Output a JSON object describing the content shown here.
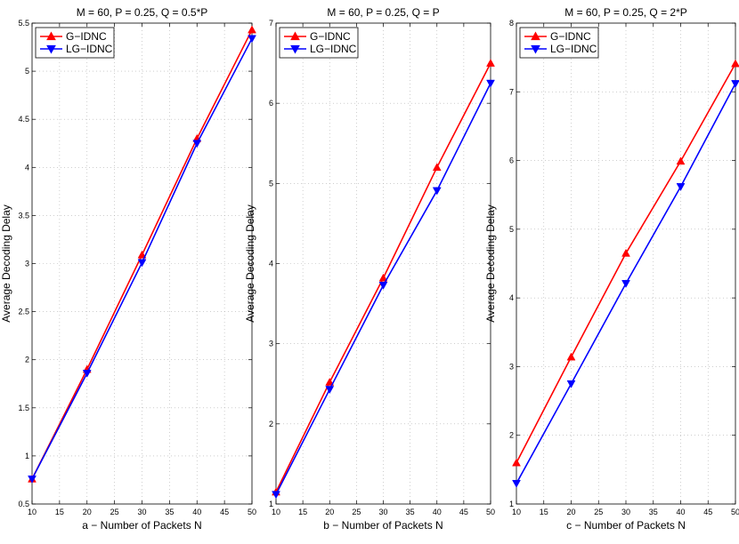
{
  "figure": {
    "background": "#ffffff"
  },
  "chart_data": [
    {
      "type": "line",
      "title": "M = 60, P = 0.25, Q = 0.5*P",
      "xlabel": "a − Number of Packets N",
      "ylabel": "Average Decoding Delay",
      "x": [
        10,
        20,
        30,
        40,
        50
      ],
      "xlim": [
        10,
        50
      ],
      "ylim": [
        0.5,
        5.5
      ],
      "xticks": [
        10,
        15,
        20,
        25,
        30,
        35,
        40,
        45,
        50
      ],
      "yticks": [
        0.5,
        1,
        1.5,
        2,
        2.5,
        3,
        3.5,
        4,
        4.5,
        5,
        5.5
      ],
      "grid": true,
      "legend": "top-left",
      "series": [
        {
          "name": "G−IDNC",
          "values": [
            0.76,
            1.9,
            3.09,
            4.3,
            5.43
          ],
          "color": "#ff0000",
          "marker": "triangle-up"
        },
        {
          "name": "LG−IDNC",
          "values": [
            0.76,
            1.86,
            3.01,
            4.25,
            5.34
          ],
          "color": "#0000ff",
          "marker": "triangle-down"
        }
      ]
    },
    {
      "type": "line",
      "title": "M = 60, P = 0.25, Q = P",
      "xlabel": "b − Number of Packets N",
      "ylabel": "Average Decoding Delay",
      "x": [
        10,
        20,
        30,
        40,
        50
      ],
      "xlim": [
        10,
        50
      ],
      "ylim": [
        1,
        7
      ],
      "xticks": [
        10,
        15,
        20,
        25,
        30,
        35,
        40,
        45,
        50
      ],
      "yticks": [
        1,
        2,
        3,
        4,
        5,
        6,
        7
      ],
      "grid": true,
      "legend": "top-left",
      "series": [
        {
          "name": "G−IDNC",
          "values": [
            1.15,
            2.52,
            3.82,
            5.2,
            6.5
          ],
          "color": "#ff0000",
          "marker": "triangle-up"
        },
        {
          "name": "LG−IDNC",
          "values": [
            1.12,
            2.43,
            3.73,
            4.91,
            6.25
          ],
          "color": "#0000ff",
          "marker": "triangle-down"
        }
      ]
    },
    {
      "type": "line",
      "title": "M = 60, P = 0.25, Q = 2*P",
      "xlabel": "c − Number of Packets N",
      "ylabel": "Average Decoding Delay",
      "x": [
        10,
        20,
        30,
        40,
        50
      ],
      "xlim": [
        10,
        50
      ],
      "ylim": [
        1,
        8
      ],
      "xticks": [
        10,
        15,
        20,
        25,
        30,
        35,
        40,
        45,
        50
      ],
      "yticks": [
        1,
        2,
        3,
        4,
        5,
        6,
        7,
        8
      ],
      "grid": true,
      "legend": "top-left",
      "series": [
        {
          "name": "G−IDNC",
          "values": [
            1.6,
            3.14,
            4.65,
            5.99,
            7.41
          ],
          "color": "#ff0000",
          "marker": "triangle-up"
        },
        {
          "name": "LG−IDNC",
          "values": [
            1.3,
            2.75,
            4.21,
            5.62,
            7.12
          ],
          "color": "#0000ff",
          "marker": "triangle-down"
        }
      ]
    }
  ]
}
